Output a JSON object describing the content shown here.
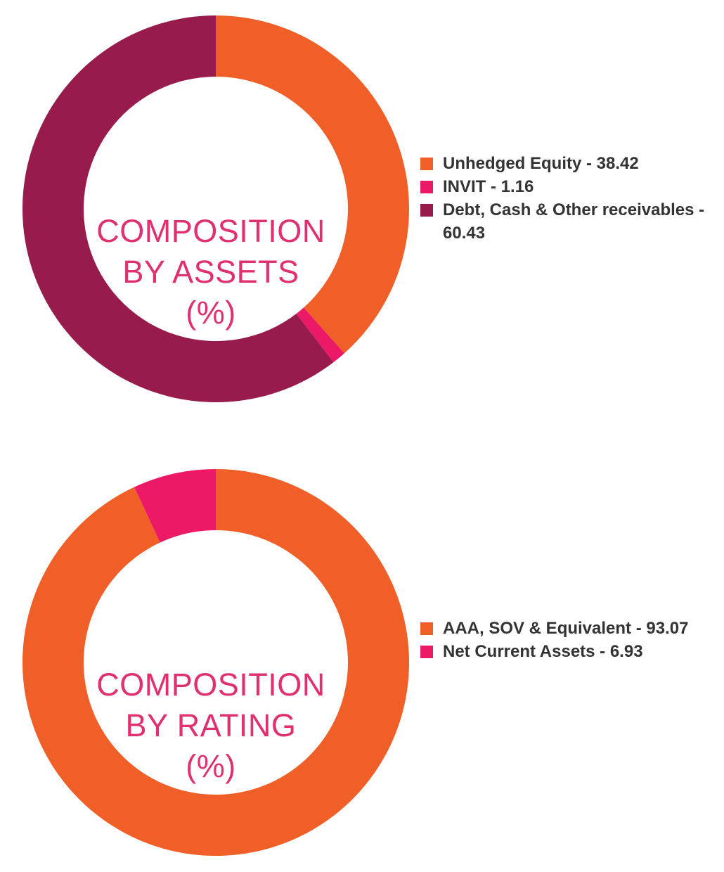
{
  "chart_data": [
    {
      "type": "pie",
      "variant": "donut",
      "title_lines": [
        "COMPOSITION",
        "BY ASSETS",
        "(%)"
      ],
      "legend_position": "right",
      "slices": [
        {
          "label": "Unhedged Equity - 38.42",
          "value": 38.42,
          "color": "#f05f28"
        },
        {
          "label": "INVIT - 1.16",
          "value": 1.16,
          "color": "#ec1a66"
        },
        {
          "label": "Debt, Cash & Other receivables - 60.43",
          "value": 60.43,
          "color": "#981b4d"
        }
      ]
    },
    {
      "type": "pie",
      "variant": "donut",
      "title_lines": [
        "COMPOSITION",
        "BY RATING",
        "(%)"
      ],
      "legend_position": "right",
      "slices": [
        {
          "label": "AAA, SOV & Equivalent - 93.07",
          "value": 93.07,
          "color": "#f05f28"
        },
        {
          "label": "Net Current Assets - 6.93",
          "value": 6.93,
          "color": "#ec1a66"
        }
      ]
    }
  ]
}
